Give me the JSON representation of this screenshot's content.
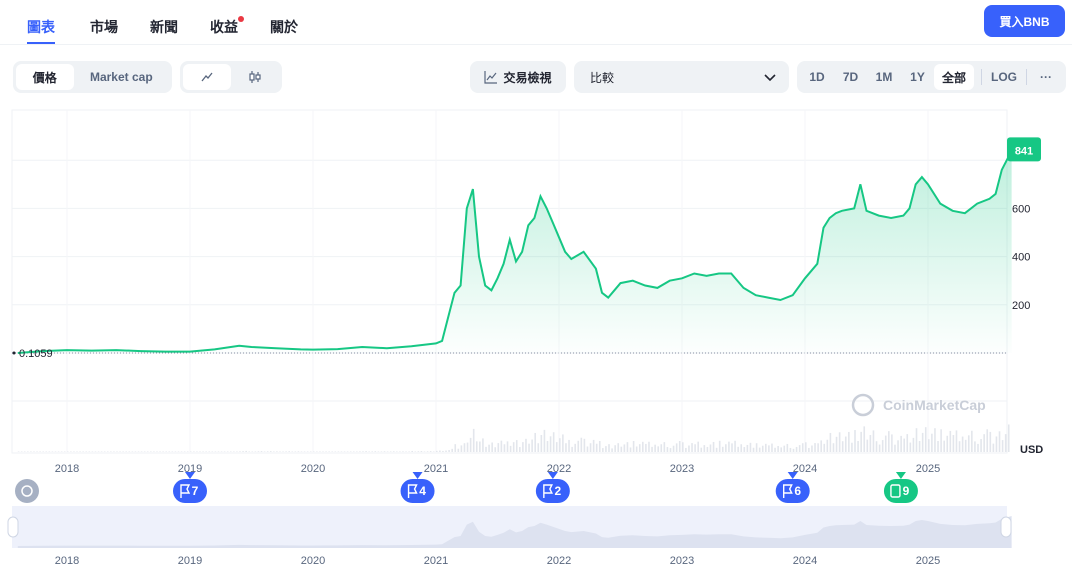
{
  "tabs": [
    {
      "label": "圖表",
      "active": true
    },
    {
      "label": "市場"
    },
    {
      "label": "新聞"
    },
    {
      "label": "收益",
      "badge": true
    },
    {
      "label": "關於"
    }
  ],
  "buy_button": "買入BNB",
  "toolbar": {
    "price_label": "價格",
    "market_cap_label": "Market cap",
    "line_icon": "line-chart-icon",
    "candle_icon": "candlestick-icon",
    "trade_view_label": "交易檢視",
    "compare_placeholder": "比較",
    "ranges": [
      "1D",
      "7D",
      "1M",
      "1Y",
      "全部"
    ],
    "active_range": "全部",
    "log_label": "LOG",
    "more_label": "···"
  },
  "watermark": "CoinMarketCap",
  "colors": {
    "accent": "#3861fb",
    "line": "#16c784",
    "area_top": "#16c784",
    "flag_green": "#16c784"
  },
  "chart_data": {
    "type": "area",
    "currency_label": "USD",
    "start_price_label": "0.1059",
    "current_price_label": "841",
    "y_ticks": [
      "200",
      "400",
      "600"
    ],
    "ylim": [
      -150,
      900
    ],
    "x_ticks": [
      "2018",
      "2019",
      "2020",
      "2021",
      "2022",
      "2023",
      "2024",
      "2025"
    ],
    "x": [
      2017.6,
      2017.8,
      2018.0,
      2018.2,
      2018.4,
      2018.6,
      2018.8,
      2019.0,
      2019.2,
      2019.4,
      2019.5,
      2019.7,
      2019.9,
      2020.0,
      2020.2,
      2020.4,
      2020.6,
      2020.8,
      2021.0,
      2021.05,
      2021.1,
      2021.15,
      2021.2,
      2021.25,
      2021.3,
      2021.35,
      2021.4,
      2021.45,
      2021.5,
      2021.55,
      2021.6,
      2021.65,
      2021.7,
      2021.75,
      2021.8,
      2021.85,
      2021.9,
      2021.95,
      2022.0,
      2022.05,
      2022.1,
      2022.2,
      2022.3,
      2022.35,
      2022.4,
      2022.45,
      2022.5,
      2022.6,
      2022.7,
      2022.8,
      2022.9,
      2023.0,
      2023.1,
      2023.2,
      2023.3,
      2023.4,
      2023.5,
      2023.6,
      2023.7,
      2023.8,
      2023.9,
      2024.0,
      2024.1,
      2024.15,
      2024.2,
      2024.25,
      2024.3,
      2024.4,
      2024.45,
      2024.5,
      2024.6,
      2024.7,
      2024.8,
      2024.85,
      2024.9,
      2024.95,
      2025.0,
      2025.1,
      2025.2,
      2025.3,
      2025.4,
      2025.5,
      2025.55,
      2025.6,
      2025.65,
      2025.68
    ],
    "y": [
      0.1059,
      8,
      12,
      10,
      12,
      8,
      6,
      6,
      15,
      30,
      25,
      20,
      15,
      14,
      16,
      25,
      20,
      28,
      40,
      50,
      150,
      250,
      280,
      600,
      680,
      400,
      280,
      260,
      310,
      370,
      470,
      380,
      420,
      530,
      560,
      650,
      600,
      540,
      480,
      420,
      390,
      420,
      350,
      250,
      230,
      260,
      290,
      300,
      280,
      270,
      300,
      310,
      330,
      320,
      330,
      330,
      270,
      240,
      230,
      220,
      240,
      310,
      370,
      520,
      560,
      580,
      590,
      600,
      700,
      590,
      570,
      560,
      570,
      600,
      700,
      730,
      700,
      620,
      590,
      580,
      620,
      640,
      660,
      760,
      810,
      841
    ],
    "volume_peak_label": "",
    "events": [
      {
        "x": 2019.0,
        "type": "flag",
        "count": "7"
      },
      {
        "x": 2020.85,
        "type": "flag",
        "count": "4"
      },
      {
        "x": 2021.95,
        "type": "flag",
        "count": "2"
      },
      {
        "x": 2023.9,
        "type": "flag",
        "count": "6"
      },
      {
        "x": 2024.78,
        "type": "doc",
        "count": "9"
      }
    ]
  }
}
